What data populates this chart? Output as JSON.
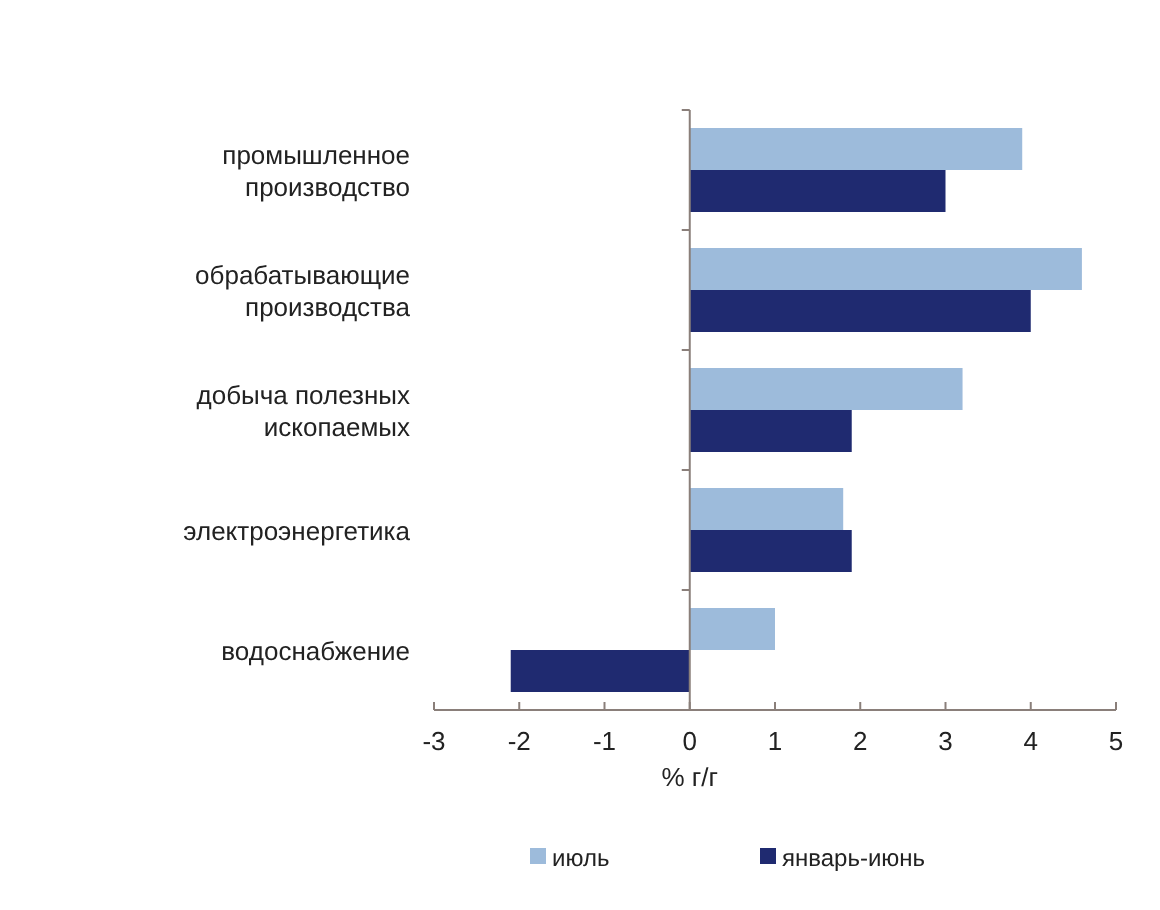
{
  "chart_data": {
    "type": "bar",
    "orientation": "horizontal",
    "categories": [
      "промышленное производство",
      "обрабатывающие производства",
      "добыча полезных ископаемых",
      "электроэнергетика",
      "водоснабжение"
    ],
    "series": [
      {
        "name": "июль",
        "color": "#9dbbdb",
        "values": [
          3.9,
          4.6,
          3.2,
          1.8,
          1.0
        ]
      },
      {
        "name": "январь-июнь",
        "color": "#1f2a70",
        "values": [
          3.0,
          4.0,
          1.9,
          1.9,
          -2.1
        ]
      }
    ],
    "xlim": [
      -3,
      5
    ],
    "xticks": [
      -3,
      -2,
      -1,
      0,
      1,
      2,
      3,
      4,
      5
    ],
    "xlabel": "% г/г",
    "legend": "bottom"
  }
}
